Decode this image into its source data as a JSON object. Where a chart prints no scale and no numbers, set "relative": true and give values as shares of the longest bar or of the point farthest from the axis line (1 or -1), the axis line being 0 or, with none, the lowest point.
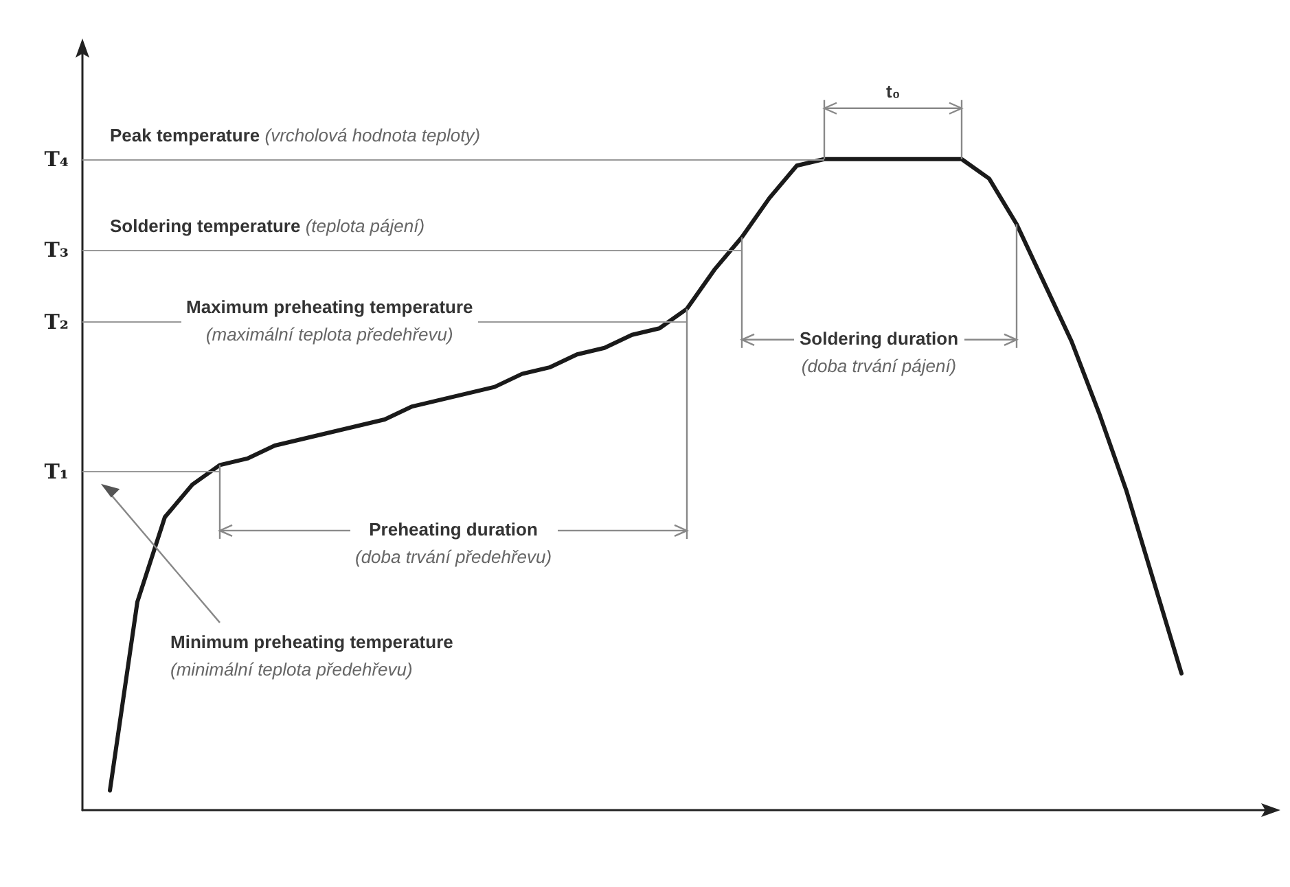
{
  "chart_data": {
    "type": "line",
    "relative": true,
    "categories": [
      null,
      null,
      null,
      null,
      null,
      null,
      null,
      null,
      null,
      null,
      null,
      null,
      null,
      null,
      null,
      null,
      null,
      null,
      null,
      null,
      null,
      null,
      null,
      null,
      null,
      null,
      null,
      null,
      null,
      null,
      null,
      null,
      null,
      null,
      null,
      null,
      null,
      null,
      null,
      null,
      null,
      null,
      null,
      null
    ],
    "values": [
      null,
      0.03,
      0.32,
      0.45,
      0.5,
      0.53,
      0.54,
      0.56,
      0.57,
      0.58,
      0.59,
      0.6,
      0.62,
      0.63,
      0.64,
      0.65,
      0.67,
      0.68,
      0.7,
      0.71,
      0.73,
      0.74,
      0.77,
      0.83,
      0.88,
      0.94,
      0.99,
      1.0,
      1.0,
      1.0,
      1.0,
      1.0,
      1.0,
      0.97,
      0.9,
      0.81,
      0.72,
      0.61,
      0.49,
      0.35,
      0.21,
      null,
      null,
      null
    ],
    "color": "#1a1a1a",
    "ref_lines": [
      {
        "axis": "y",
        "value": 0.52,
        "label": "T₁",
        "color": "#999999"
      },
      {
        "axis": "y",
        "value": 0.75,
        "label": "T₂",
        "color": "#999999"
      },
      {
        "axis": "y",
        "value": 0.86,
        "label": "T₃",
        "color": "#999999"
      },
      {
        "axis": "y",
        "value": 1.0,
        "label": "T₄",
        "color": "#999999"
      }
    ],
    "annotations": [
      "Peak temperature (vrcholová hodnota teploty)",
      "Soldering temperature (teplota pájení)",
      "Maximum preheating temperature (maximální teplota předehřevu)",
      "Preheating duration (doba trvání předehřevu)",
      "Soldering duration (doba trvání pájení)",
      "Minimum preheating temperature (minimální teplota předehřevu)",
      "t₀"
    ]
  }
}
